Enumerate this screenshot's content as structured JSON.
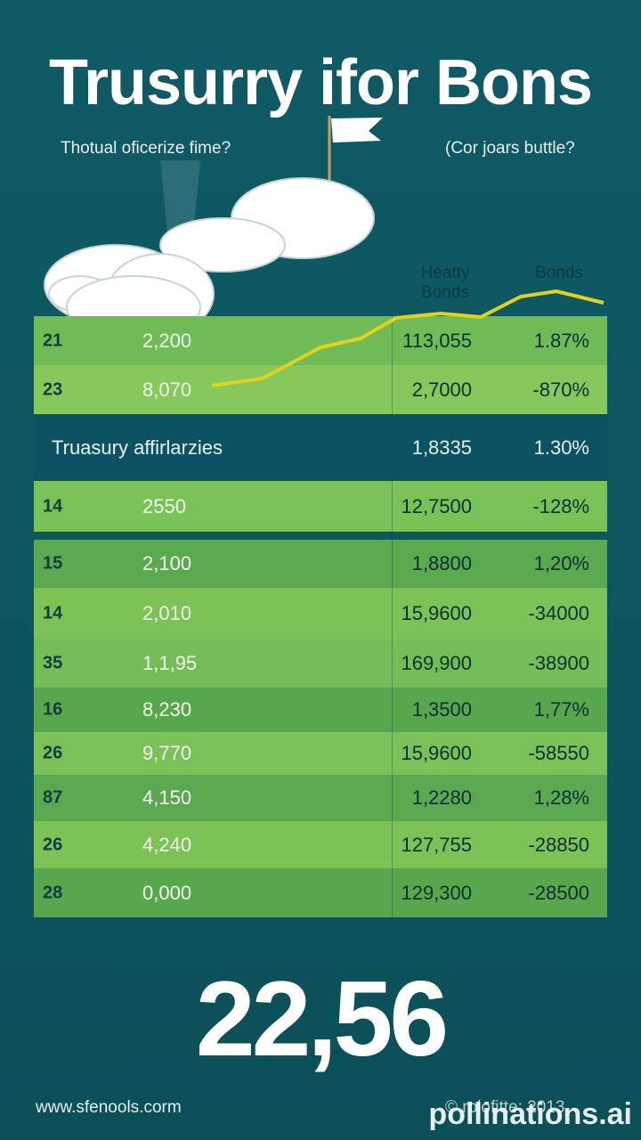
{
  "header": {
    "title": "Trusurry ifor Bons",
    "subtitle_left": "Thotual oficerize fime?",
    "subtitle_right": "(Cor joars buttle?"
  },
  "table": {
    "headers": [
      "Heatty Bonds",
      "Bonds"
    ],
    "rows": [
      [
        "21",
        "2,200",
        "113,055",
        "1.87%"
      ],
      [
        "23",
        "8,070",
        "2,7000",
        "-870%"
      ],
      [
        "14",
        "2550",
        "12,7500",
        "-128%"
      ],
      [
        "15",
        "2,100",
        "1,8800",
        "1,20%"
      ],
      [
        "14",
        "2,010",
        "15,9600",
        "-34000"
      ],
      [
        "35",
        "1,1,95",
        "169,900",
        "-38900"
      ],
      [
        "16",
        "8,230",
        "1,3500",
        "1,77%"
      ],
      [
        "26",
        "9,770",
        "15,9600",
        "-58550"
      ],
      [
        "87",
        "4,150",
        "1,2280",
        "1,28%"
      ],
      [
        "26",
        "4,240",
        "127,755",
        "-28850"
      ],
      [
        "28",
        "0,000",
        "129,300",
        "-28500"
      ]
    ],
    "section": {
      "label": "Truasury affirlarzies",
      "col3": "1,8335",
      "col4": "1.30%"
    }
  },
  "big_number": "22,56",
  "footer": {
    "left": "www.sfenools.corm",
    "right": "© rolofitte: 2013",
    "watermark": "pollinations.ai"
  }
}
